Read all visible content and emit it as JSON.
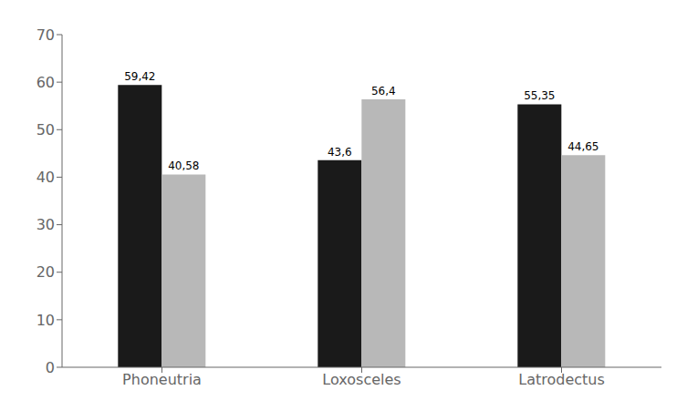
{
  "chart_data": {
    "type": "bar",
    "categories": [
      "Phoneutria",
      "Loxosceles",
      "Latrodectus"
    ],
    "series": [
      {
        "color": "#1a1a1a",
        "values": [
          59.42,
          43.6,
          55.35
        ],
        "value_labels": [
          "59,42",
          "43,6",
          "55,35"
        ]
      },
      {
        "color": "#b8b8b8",
        "values": [
          40.58,
          56.4,
          44.65
        ],
        "value_labels": [
          "40,58",
          "56,4",
          "44,65"
        ]
      }
    ],
    "ylim": [
      0,
      70
    ],
    "yticks": [
      0,
      10,
      20,
      30,
      40,
      50,
      60,
      70
    ],
    "grid": false,
    "data_labels": true
  }
}
